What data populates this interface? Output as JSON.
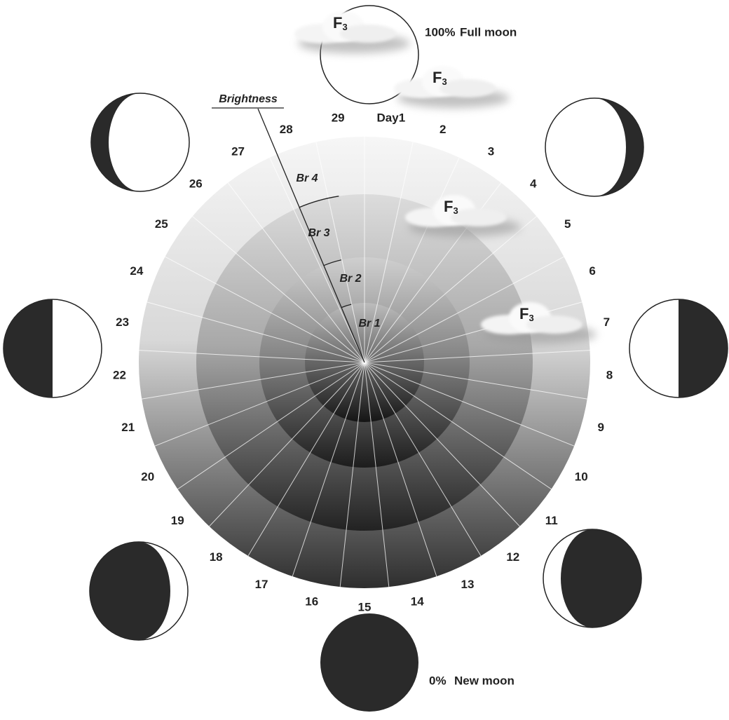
{
  "full_moon": {
    "percent": "100%",
    "label": "Full moon"
  },
  "new_moon": {
    "percent": "0%",
    "label": "New moon"
  },
  "brightness": "Brightness",
  "levels": [
    "Br 1",
    "Br 2",
    "Br 3",
    "Br 4"
  ],
  "days": [
    "Day1",
    "2",
    "3",
    "4",
    "5",
    "6",
    "7",
    "8",
    "9",
    "10",
    "11",
    "12",
    "13",
    "14",
    "15",
    "16",
    "17",
    "18",
    "19",
    "20",
    "21",
    "22",
    "23",
    "24",
    "25",
    "26",
    "27",
    "28",
    "29"
  ],
  "clouds": [
    {
      "letter": "F",
      "sub": "3"
    },
    {
      "letter": "F",
      "sub": "3"
    },
    {
      "letter": "F",
      "sub": "3"
    },
    {
      "letter": "F",
      "sub": "3"
    }
  ]
}
